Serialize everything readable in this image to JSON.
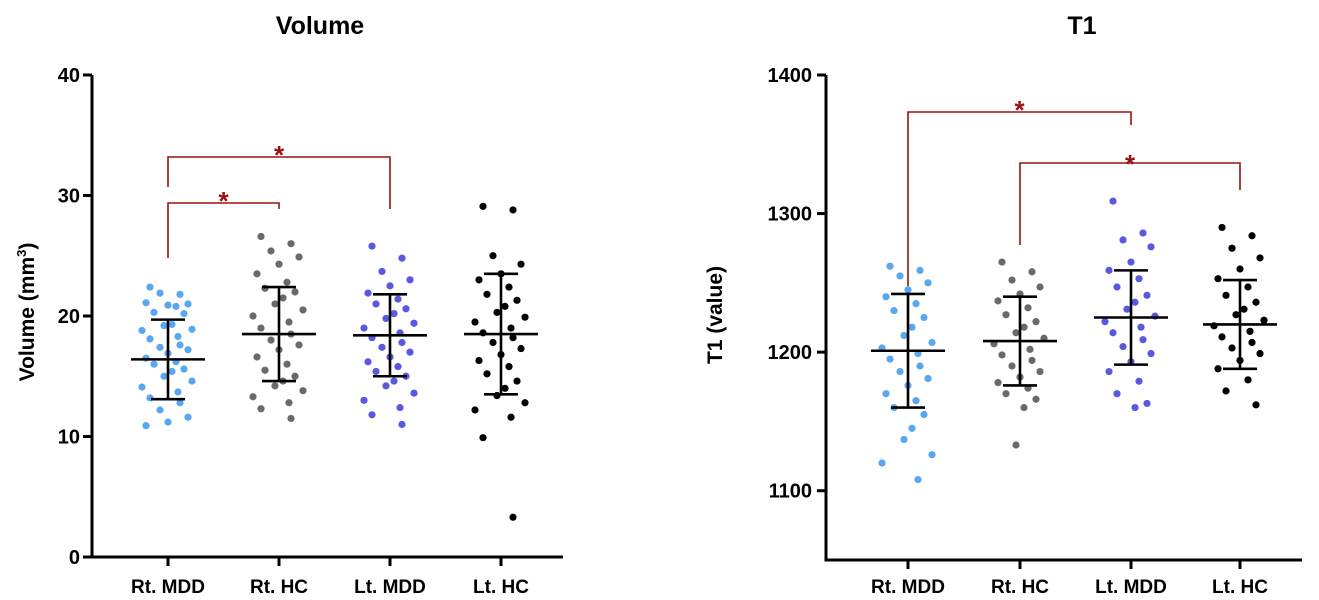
{
  "chart_data": [
    {
      "type": "scatter",
      "title": "Volume",
      "ylabel_main": "Volume  (mm",
      "ylabel_sup": "3",
      "ylabel_close": ")",
      "xlabel": "",
      "ylim": [
        0,
        40
      ],
      "yticks": [
        "0",
        "10",
        "20",
        "30",
        "40"
      ],
      "categories": [
        "Rt. MDD",
        "Rt. HC",
        "Lt. MDD",
        "Lt. HC"
      ],
      "series": [
        {
          "color": "#5aa7f0",
          "mean": 16.4,
          "sd": 3.3,
          "values": [
            22.4,
            21.8,
            21.9,
            21.0,
            20.9,
            21.1,
            20.8,
            20.3,
            20.2,
            19.3,
            19.2,
            18.9,
            18.8,
            18.3,
            18.1,
            17.6,
            17.4,
            17.2,
            16.9,
            16.5,
            16.2,
            16.0,
            15.6,
            15.4,
            15.0,
            14.6,
            14.1,
            13.7,
            13.2,
            12.8,
            12.2,
            11.6,
            11.2,
            10.9
          ]
        },
        {
          "color": "#6a6a6a",
          "mean": 18.5,
          "sd": 3.9,
          "values": [
            26.6,
            26.0,
            25.4,
            24.9,
            24.3,
            23.5,
            22.8,
            22.3,
            22.0,
            21.5,
            21.0,
            20.5,
            20.0,
            19.5,
            19.0,
            18.5,
            18.0,
            17.6,
            17.2,
            16.6,
            16.0,
            15.5,
            15.0,
            14.6,
            14.2,
            13.8,
            13.3,
            12.8,
            12.3,
            11.5
          ]
        },
        {
          "color": "#5b58e0",
          "mean": 18.4,
          "sd": 3.4,
          "values": [
            25.8,
            24.8,
            23.7,
            23.0,
            22.5,
            21.9,
            21.4,
            21.0,
            20.6,
            20.2,
            19.8,
            19.4,
            19.0,
            18.6,
            18.2,
            17.8,
            17.4,
            17.0,
            16.6,
            16.2,
            15.8,
            15.4,
            15.0,
            14.6,
            14.2,
            13.6,
            13.0,
            12.4,
            11.8,
            11.0
          ]
        },
        {
          "color": "#000000",
          "mean": 18.5,
          "sd": 5.0,
          "values": [
            29.1,
            28.8,
            25.0,
            24.3,
            23.5,
            23.0,
            22.4,
            21.8,
            21.3,
            20.8,
            20.3,
            19.9,
            19.5,
            19.0,
            18.6,
            18.2,
            17.8,
            17.3,
            16.8,
            16.3,
            15.8,
            15.2,
            14.6,
            14.0,
            13.4,
            12.8,
            12.2,
            11.6,
            9.9,
            3.3
          ]
        }
      ],
      "significance": [
        {
          "from": 0,
          "to": 1,
          "label": "*"
        },
        {
          "from": 0,
          "to": 2,
          "label": "*"
        }
      ]
    },
    {
      "type": "scatter",
      "title": "T1",
      "ylabel_main": "T1 (value)",
      "ylabel_sup": "",
      "ylabel_close": "",
      "xlabel": "",
      "ylim": [
        1050,
        1400
      ],
      "yticks": [
        "1100",
        "1200",
        "1300",
        "1400"
      ],
      "categories": [
        "Rt. MDD",
        "Rt. HC",
        "Lt. MDD",
        "Lt. HC"
      ],
      "series": [
        {
          "color": "#5aa7f0",
          "mean": 1201,
          "sd": 41,
          "values": [
            1262,
            1259,
            1255,
            1250,
            1245,
            1240,
            1235,
            1230,
            1225,
            1218,
            1212,
            1207,
            1203,
            1199,
            1195,
            1190,
            1186,
            1181,
            1176,
            1170,
            1165,
            1160,
            1155,
            1145,
            1137,
            1126,
            1120,
            1108
          ]
        },
        {
          "color": "#6a6a6a",
          "mean": 1208,
          "sd": 32,
          "values": [
            1265,
            1258,
            1252,
            1247,
            1242,
            1237,
            1232,
            1227,
            1222,
            1218,
            1214,
            1210,
            1206,
            1202,
            1198,
            1194,
            1190,
            1186,
            1182,
            1178,
            1174,
            1170,
            1166,
            1160,
            1133
          ]
        },
        {
          "color": "#5b58e0",
          "mean": 1225,
          "sd": 34,
          "values": [
            1309,
            1286,
            1281,
            1276,
            1265,
            1259,
            1253,
            1247,
            1241,
            1236,
            1231,
            1226,
            1222,
            1218,
            1214,
            1209,
            1204,
            1199,
            1193,
            1186,
            1179,
            1170,
            1163,
            1160
          ]
        },
        {
          "color": "#000000",
          "mean": 1220,
          "sd": 32,
          "values": [
            1290,
            1284,
            1275,
            1268,
            1260,
            1253,
            1247,
            1241,
            1236,
            1231,
            1227,
            1223,
            1219,
            1215,
            1211,
            1207,
            1203,
            1199,
            1194,
            1188,
            1180,
            1172,
            1162
          ]
        }
      ],
      "significance": [
        {
          "from": 0,
          "to": 2,
          "label": "*"
        },
        {
          "from": 1,
          "to": 3,
          "label": "*"
        }
      ]
    }
  ]
}
